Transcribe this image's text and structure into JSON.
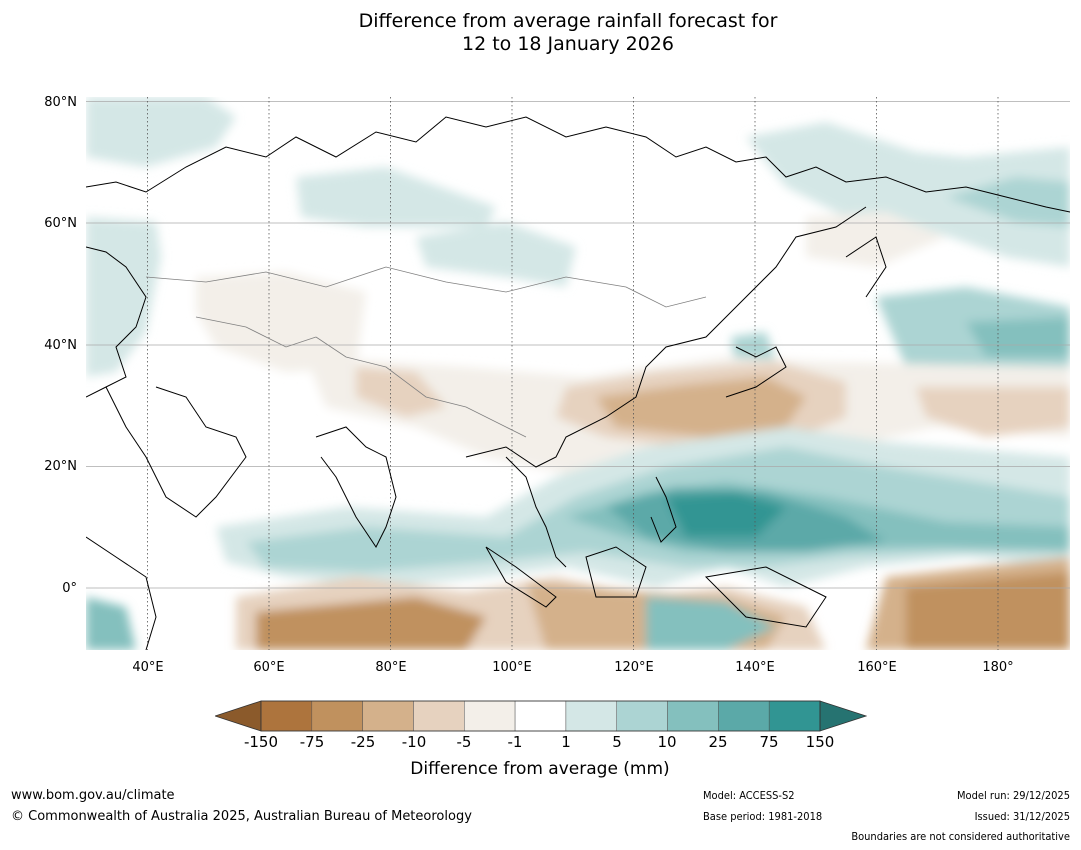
{
  "title": {
    "line1": "Difference from average rainfall forecast for",
    "line2": "12 to 18 January 2026"
  },
  "axes": {
    "lat_labels": [
      "80°N",
      "60°N",
      "40°N",
      "20°N",
      "0°"
    ],
    "lon_labels": [
      "40°E",
      "60°E",
      "80°E",
      "100°E",
      "120°E",
      "140°E",
      "160°E",
      "180°"
    ],
    "lon_range": [
      30,
      191
    ],
    "lat_range": [
      -10,
      80
    ]
  },
  "legend": {
    "ticks": [
      "-150",
      "-75",
      "-25",
      "-10",
      "-5",
      "-1",
      "1",
      "5",
      "10",
      "25",
      "75",
      "150"
    ],
    "colors": [
      "#8b5a2b",
      "#ad743d",
      "#c0915e",
      "#d4b18b",
      "#e6d2bf",
      "#f3efe9",
      "#ffffff",
      "#d4e7e6",
      "#acd4d3",
      "#84c0be",
      "#5ba9a8",
      "#319593",
      "#267371"
    ],
    "title": "Difference from average (mm)"
  },
  "footer": {
    "website": "www.bom.gov.au/climate",
    "copyright": "© Commonwealth of Australia 2025, Australian Bureau of Meteorology",
    "model": "Model: ACCESS-S2",
    "base_period": "Base period: 1981-2018",
    "model_run": "Model run: 29/12/2025",
    "issued": "Issued: 31/12/2025",
    "disclaimer": "Boundaries are not considered authoritative"
  }
}
